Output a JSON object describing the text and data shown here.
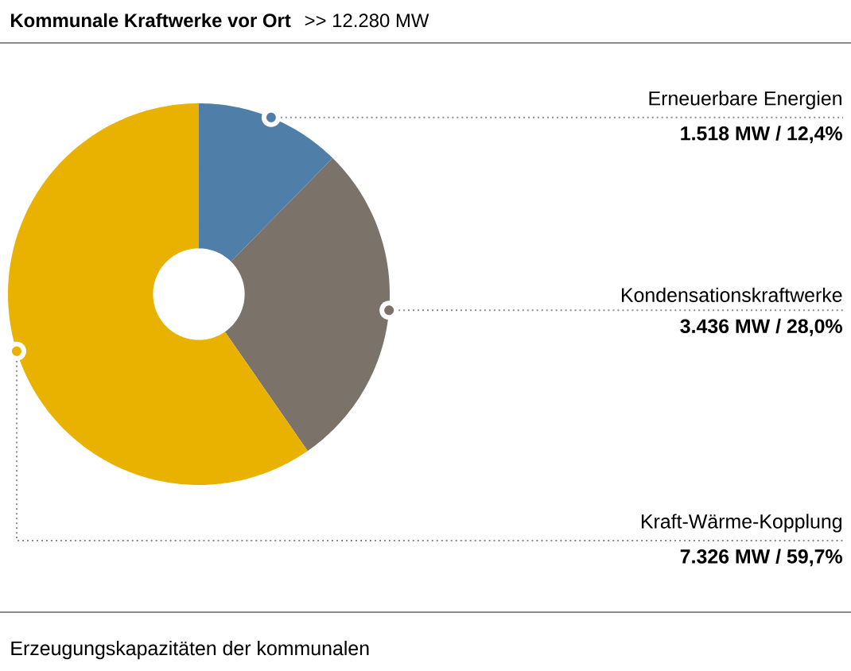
{
  "chart_data": {
    "type": "donut",
    "title": "Kommunale Kraftwerke vor Ort",
    "subtitle": ">> 12.280 MW",
    "categories": [
      "Erneuerbare Energien",
      "Kondensationskraftwerke",
      "Kraft-Wärme-Kopplung"
    ],
    "values": [
      1518,
      3436,
      7326
    ],
    "value_labels": [
      "1.518 MW / 12,4%",
      "3.436 MW / 28,0%",
      "7.326 MW / 59,7%"
    ],
    "colors": [
      "#4f7fa8",
      "#7b7369",
      "#e9b100"
    ],
    "annotations": [
      "Erzeugungskapazitäten der kommunalen"
    ]
  }
}
